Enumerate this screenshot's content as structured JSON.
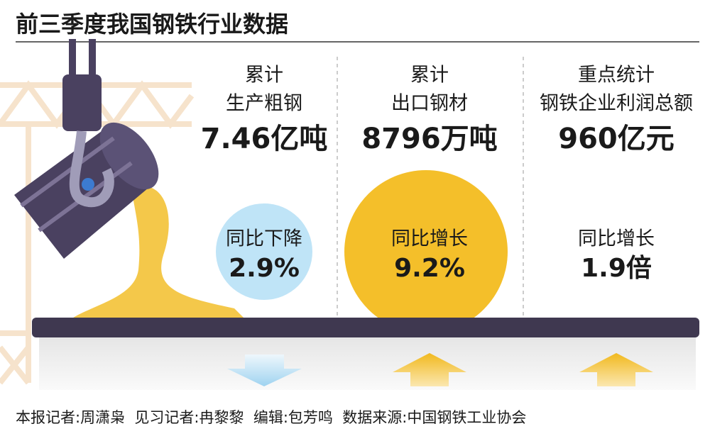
{
  "header": {
    "title": "前三季度我国钢铁行业数据"
  },
  "panels": [
    {
      "label": [
        "累计",
        "生产粗钢"
      ],
      "value": "7.46亿吨",
      "change_label": "同比下降",
      "change_value": "2.9%"
    },
    {
      "label": [
        "累计",
        "出口钢材"
      ],
      "value": "8796万吨",
      "change_label": "同比增长",
      "change_value": "9.2%"
    },
    {
      "label": [
        "重点统计",
        "钢铁企业利润总额"
      ],
      "value": "960亿元",
      "change_label": "同比增长",
      "change_value": "1.9倍"
    }
  ],
  "footer": {
    "credits": "本报记者:周潇枭  见习记者:冉黎黎  编辑:包芳鸣  数据来源:中国钢铁工业协会"
  }
}
